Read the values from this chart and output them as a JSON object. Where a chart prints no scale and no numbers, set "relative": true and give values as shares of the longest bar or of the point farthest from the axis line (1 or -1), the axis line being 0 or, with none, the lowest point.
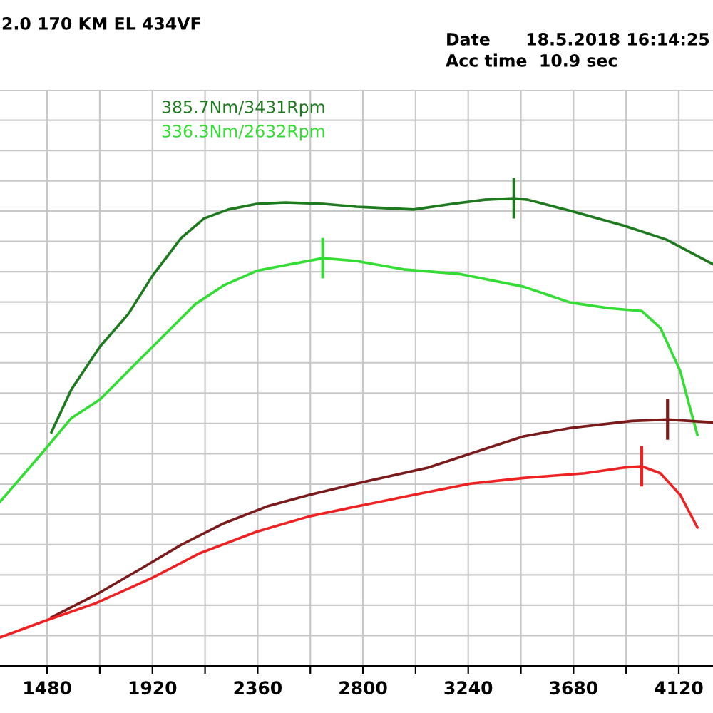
{
  "chart_data": {
    "type": "line",
    "title": "2.0 170 KM EL 434VF",
    "relative": true,
    "grid": true,
    "marker": "none",
    "line_style": "solid",
    "xlim": [
      1283,
      4263
    ],
    "xticks": [
      1480,
      {
        "value": 1700,
        "label": null
      },
      1920,
      {
        "value": 2140,
        "label": null
      },
      2360,
      {
        "value": 2580,
        "label": null
      },
      2800,
      {
        "value": 3020,
        "label": null
      },
      3240,
      {
        "value": 3460,
        "label": null
      },
      3680,
      {
        "value": 3900,
        "label": null
      },
      4120
    ],
    "annotations": [
      "Date      18.5.2018 16:14:25",
      "Acc time  10.9 sec",
      "385.7Nm/3431Rpm",
      "336.3Nm/2632Rpm"
    ],
    "series": [
      {
        "color": "#1e7a1e",
        "x": [
          1498,
          1581,
          1701,
          1820,
          1921,
          2040,
          2136,
          2237,
          2356,
          2475,
          2636,
          2773,
          3012,
          3173,
          3310,
          3431,
          3489,
          3667,
          3888,
          4067,
          4260
        ],
        "values": [
          0.5,
          0.591,
          0.683,
          0.753,
          0.835,
          0.915,
          0.957,
          0.976,
          0.988,
          0.991,
          0.988,
          0.982,
          0.976,
          0.988,
          0.997,
          1.0,
          0.997,
          0.973,
          0.942,
          0.912,
          0.86
        ]
      },
      {
        "color": "#33dd33",
        "x": [
          1283,
          1462,
          1581,
          1701,
          1820,
          1939,
          2100,
          2219,
          2356,
          2475,
          2632,
          2773,
          2970,
          3208,
          3471,
          3667,
          3828,
          3965,
          4043,
          4126,
          4162,
          4198
        ],
        "values": [
          0.351,
          0.457,
          0.53,
          0.57,
          0.631,
          0.692,
          0.774,
          0.814,
          0.845,
          0.857,
          0.872,
          0.866,
          0.848,
          0.838,
          0.811,
          0.777,
          0.765,
          0.759,
          0.723,
          0.631,
          0.561,
          0.494
        ]
      },
      {
        "color": "#7a1a1a",
        "x": [
          1498,
          1683,
          1879,
          2040,
          2219,
          2398,
          2577,
          2773,
          3071,
          3268,
          3471,
          3667,
          3924,
          4073,
          4260
        ],
        "values": [
          0.104,
          0.152,
          0.21,
          0.259,
          0.305,
          0.341,
          0.366,
          0.39,
          0.424,
          0.457,
          0.491,
          0.509,
          0.524,
          0.527,
          0.521
        ]
      },
      {
        "color": "#ee2222",
        "x": [
          1283,
          1480,
          1683,
          1921,
          2118,
          2356,
          2577,
          2773,
          3012,
          3250,
          3471,
          3727,
          3888,
          3965,
          4043,
          4126,
          4198
        ],
        "values": [
          0.061,
          0.098,
          0.134,
          0.189,
          0.241,
          0.287,
          0.32,
          0.341,
          0.366,
          0.39,
          0.402,
          0.412,
          0.424,
          0.427,
          0.412,
          0.366,
          0.296
        ]
      }
    ]
  }
}
